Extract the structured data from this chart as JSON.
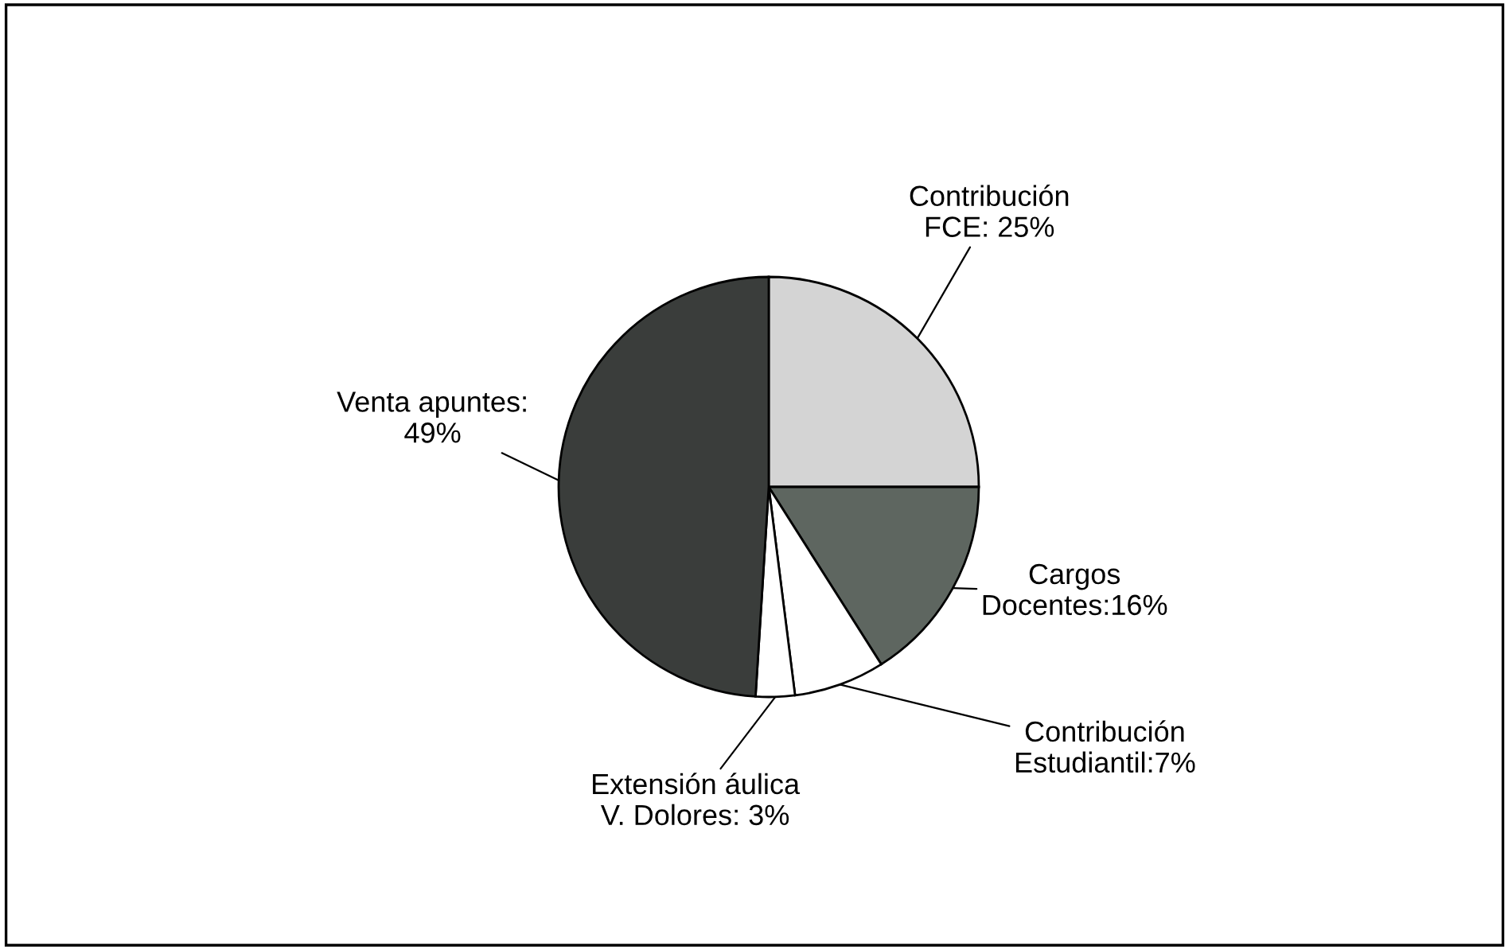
{
  "chart_data": {
    "type": "pie",
    "categories": [
      "Contribución\nFCE: 25%",
      "Cargos\nDocentes:16%",
      "Contribución\nEstudiantil:7%",
      "Extensión áulica\nV. Dolores: 3%",
      "Venta apuntes:\n49%"
    ],
    "values": [
      25,
      16,
      7,
      3,
      49
    ],
    "colors": [
      "#d4d4d4",
      "#5e6660",
      "#ffffff",
      "#ffffff",
      "#3a3d3b"
    ]
  }
}
